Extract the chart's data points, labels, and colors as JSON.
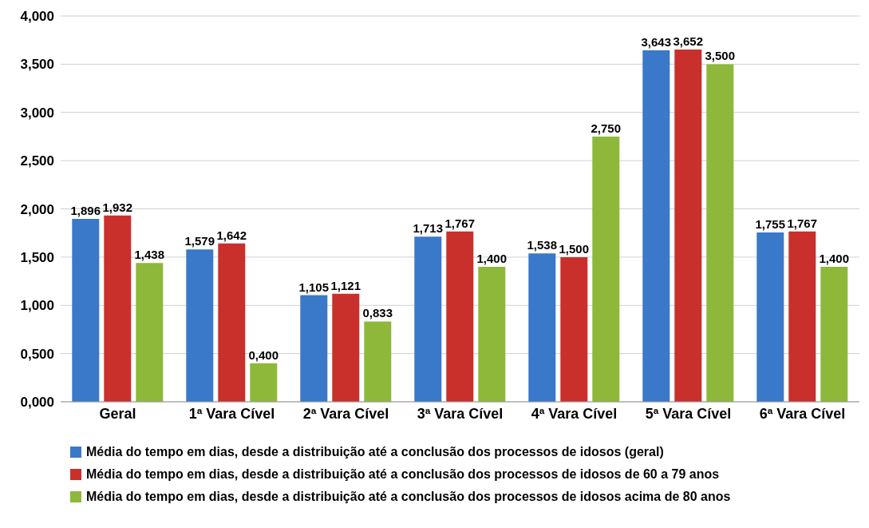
{
  "chart_data": {
    "type": "bar",
    "categories": [
      "Geral",
      "1ª Vara Cível",
      "2ª Vara Cível",
      "3ª Vara Cível",
      "4ª Vara Cível",
      "5ª Vara Cível",
      "6ª Vara Cível"
    ],
    "series": [
      {
        "name": "Média do tempo em dias, desde a distribuição até a conclusão dos processos de idosos (geral)",
        "color": "#3a78c9",
        "values": [
          1.896,
          1.579,
          1.105,
          1.713,
          1.538,
          3.643,
          1.755
        ],
        "value_labels": [
          "1,896",
          "1,579",
          "1,105",
          "1,713",
          "1,538",
          "3,643",
          "1,755"
        ]
      },
      {
        "name": "Média do tempo em dias, desde a distribuição até a conclusão dos processos de idosos de 60 a 79 anos",
        "color": "#c9302c",
        "values": [
          1.932,
          1.642,
          1.121,
          1.767,
          1.5,
          3.652,
          1.767
        ],
        "value_labels": [
          "1,932",
          "1,642",
          "1,121",
          "1,767",
          "1,500",
          "3,652",
          "1,767"
        ]
      },
      {
        "name": "Média do tempo em dias, desde a distribuição até a conclusão dos processos de idosos acima de 80 anos",
        "color": "#8db83a",
        "values": [
          1.438,
          0.4,
          0.833,
          1.4,
          2.75,
          3.5,
          1.4
        ],
        "value_labels": [
          "1,438",
          "0,400",
          "0,833",
          "1,400",
          "2,750",
          "3,500",
          "1,400"
        ]
      }
    ],
    "ylim": [
      0,
      4
    ],
    "yticks": [
      {
        "value": 0,
        "label": "0,000"
      },
      {
        "value": 0.5,
        "label": "0,500"
      },
      {
        "value": 1,
        "label": "1,000"
      },
      {
        "value": 1.5,
        "label": "1,500"
      },
      {
        "value": 2,
        "label": "2,000"
      },
      {
        "value": 2.5,
        "label": "2,500"
      },
      {
        "value": 3,
        "label": "3,000"
      },
      {
        "value": 3.5,
        "label": "3,500"
      },
      {
        "value": 4,
        "label": "4,000"
      }
    ],
    "grid": "y",
    "legend": "bottom"
  }
}
